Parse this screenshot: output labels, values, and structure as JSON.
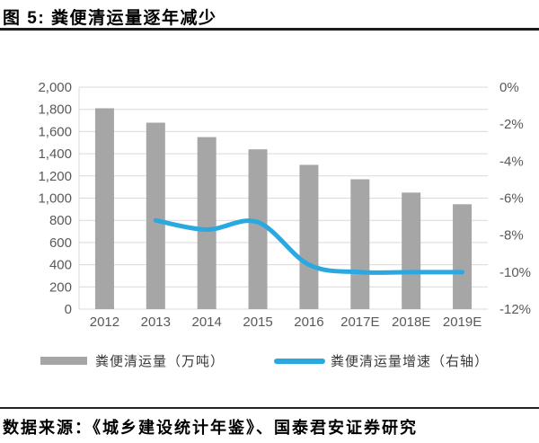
{
  "header": {
    "title": "图 5:  粪便清运量逐年减少"
  },
  "chart_data": {
    "type": "bar",
    "subtype": "bar-line-combo",
    "title": "粪便清运量逐年减少",
    "categories": [
      "2012",
      "2013",
      "2014",
      "2015",
      "2016",
      "2017E",
      "2018E",
      "2019E"
    ],
    "series": [
      {
        "name": "粪便清运量（万吨）",
        "type": "bar",
        "axis": "left",
        "values": [
          1810,
          1680,
          1550,
          1440,
          1300,
          1170,
          1050,
          945
        ]
      },
      {
        "name": "粪便清运量增速（右轴）",
        "type": "line",
        "axis": "right",
        "values": [
          null,
          -7.2,
          -7.7,
          -7.3,
          -9.6,
          -10.0,
          -10.0,
          -10.0
        ]
      }
    ],
    "left_axis": {
      "min": 0,
      "max": 2000,
      "step": 200,
      "tick_labels": [
        "2,000",
        "1,800",
        "1,600",
        "1,400",
        "1,200",
        "1,000",
        "800",
        "600",
        "400",
        "200",
        "0"
      ]
    },
    "right_axis": {
      "min": -12,
      "max": 0,
      "step": 2,
      "tick_labels": [
        "0%",
        "-2%",
        "-4%",
        "-6%",
        "-8%",
        "-10%",
        "-12%"
      ]
    },
    "grid": true,
    "legend_position": "bottom",
    "colors": {
      "bar": "#A6A6A6",
      "line": "#29A9E0",
      "grid": "#D9D9D9",
      "tick_text": "#595959"
    }
  },
  "source": {
    "text": "数据来源：《城乡建设统计年鉴》、国泰君安证券研究"
  }
}
